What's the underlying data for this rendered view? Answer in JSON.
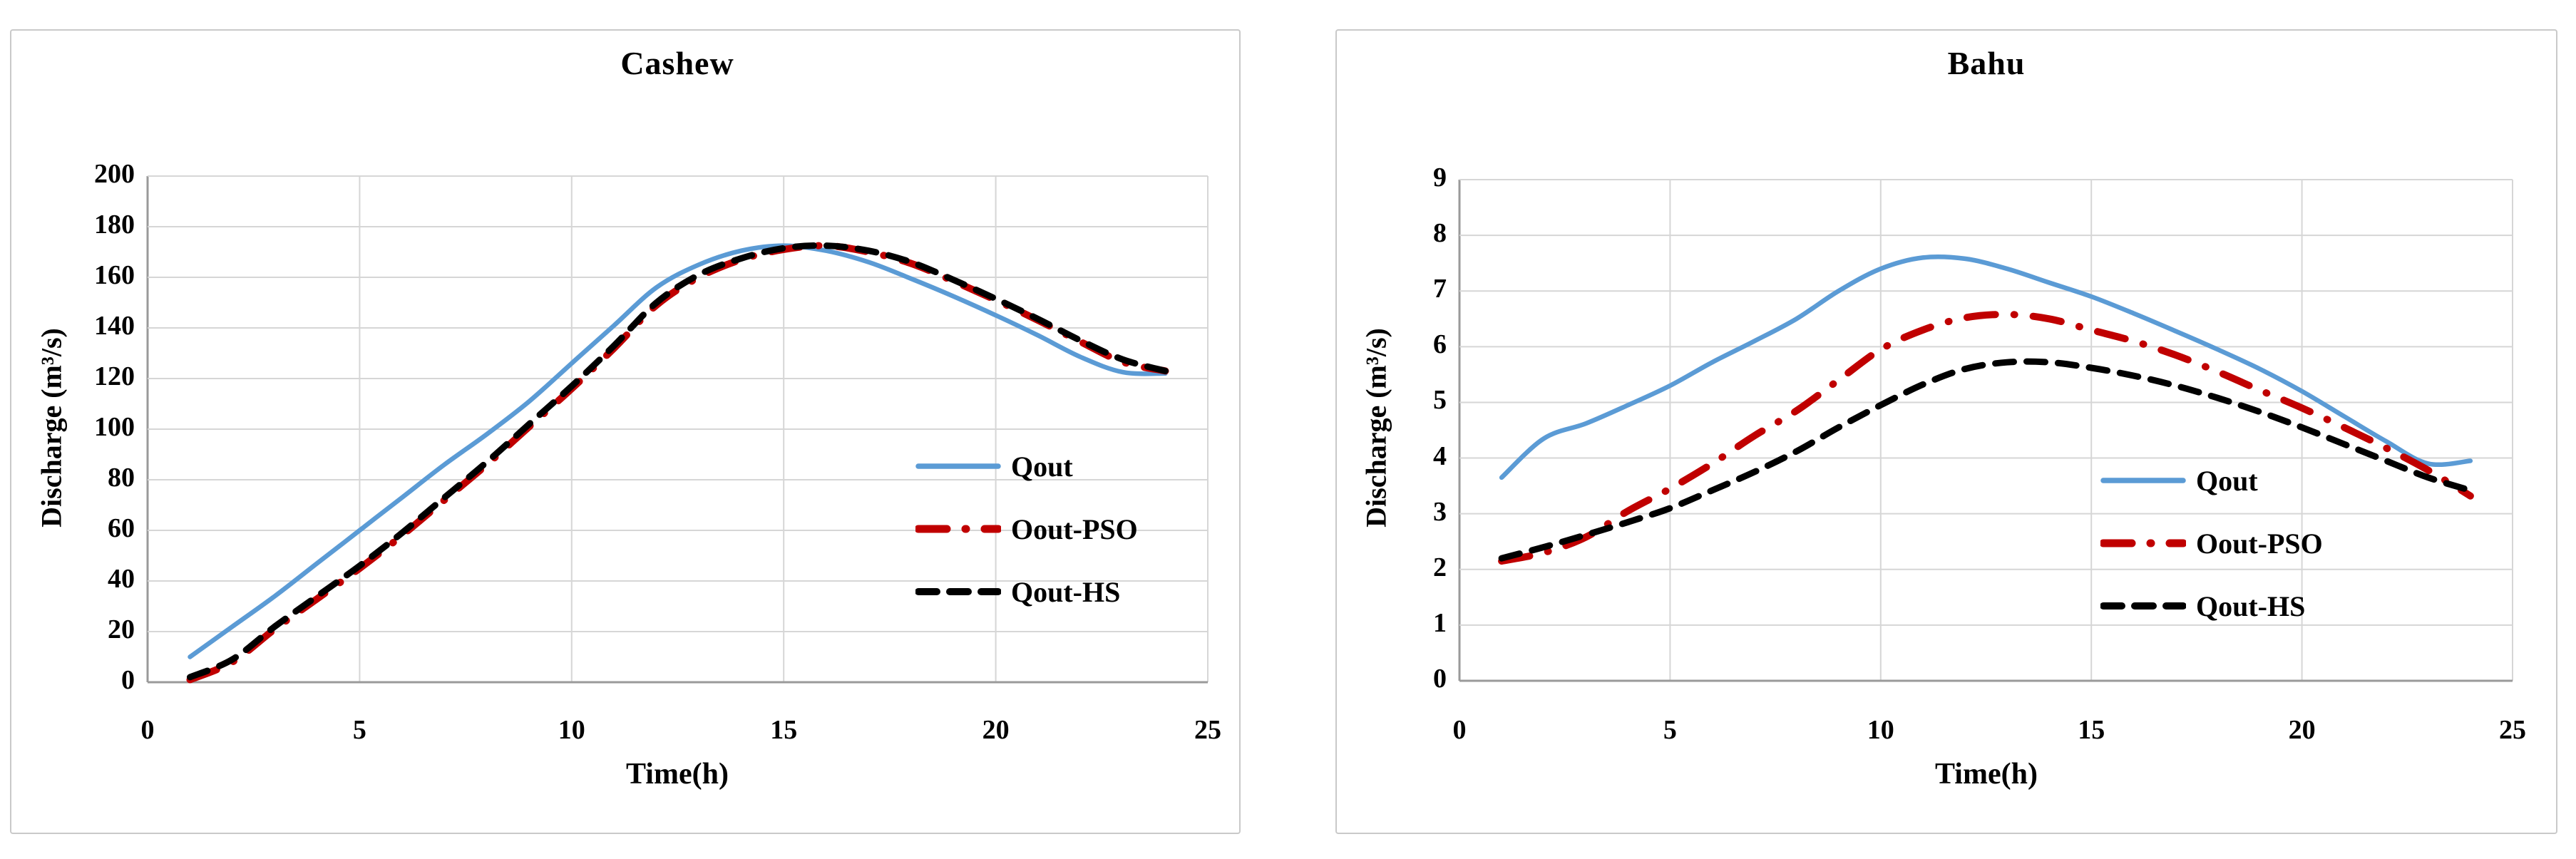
{
  "figure": {
    "background": "#ffffff",
    "panel_border_color": "#c9c9c9",
    "gridline_color": "#d6d6d6",
    "axis_line_color": "#9a9a9a"
  },
  "chart_data": [
    {
      "type": "line",
      "title": "Cashew",
      "xlabel": "Time(h)",
      "ylabel": "Discharge (m³/s)",
      "xlim": [
        0,
        25
      ],
      "ylim": [
        0,
        200
      ],
      "x_ticks": [
        0,
        5,
        10,
        15,
        20,
        25
      ],
      "y_ticks": [
        0,
        20,
        40,
        60,
        80,
        100,
        120,
        140,
        160,
        180,
        200
      ],
      "grid": true,
      "legend_position": "right-middle-inside",
      "x": [
        1,
        2,
        3,
        4,
        5,
        6,
        7,
        8,
        9,
        10,
        11,
        12,
        13,
        14,
        15,
        16,
        17,
        18,
        19,
        20,
        21,
        22,
        23,
        24
      ],
      "series": [
        {
          "name": "Qout",
          "color": "#5B9BD5",
          "line_style": "solid",
          "values": [
            10,
            22,
            34,
            47,
            60,
            73,
            86,
            98,
            111,
            126,
            141,
            156,
            165,
            170.5,
            172.5,
            170.5,
            166,
            159.5,
            152.5,
            145,
            137,
            128.5,
            122.5,
            122
          ]
        },
        {
          "name": "Oout-PSO",
          "color": "#C00000",
          "line_style": "dashdot",
          "values": [
            1,
            8,
            21,
            33,
            45,
            58,
            72,
            86,
            101,
            116,
            132,
            149,
            160,
            167,
            171,
            172.5,
            170,
            165.5,
            158.5,
            151,
            143,
            134.5,
            126.5,
            123
          ]
        },
        {
          "name": "Qout-HS",
          "color": "#000000",
          "line_style": "dashed",
          "values": [
            2,
            9,
            22,
            34,
            46,
            59,
            73,
            87,
            102,
            117,
            133,
            150,
            161,
            167.5,
            171.5,
            172.5,
            170.5,
            166,
            159,
            151.5,
            143.5,
            135,
            127.5,
            123
          ]
        }
      ]
    },
    {
      "type": "line",
      "title": "Bahu",
      "xlabel": "Time(h)",
      "ylabel": "Discharge (m³/s)",
      "xlim": [
        0,
        25
      ],
      "ylim": [
        0,
        9
      ],
      "x_ticks": [
        0,
        5,
        10,
        15,
        20,
        25
      ],
      "y_ticks": [
        0,
        1,
        2,
        3,
        4,
        5,
        6,
        7,
        8,
        9
      ],
      "grid": true,
      "legend_position": "right-middle-inside",
      "x": [
        1,
        2,
        3,
        4,
        5,
        6,
        7,
        8,
        9,
        10,
        11,
        12,
        13,
        14,
        15,
        16,
        17,
        18,
        19,
        20,
        21,
        22,
        23,
        24
      ],
      "series": [
        {
          "name": "Qout",
          "color": "#5B9BD5",
          "line_style": "solid",
          "values": [
            3.65,
            4.35,
            4.62,
            4.95,
            5.3,
            5.72,
            6.1,
            6.5,
            7.0,
            7.4,
            7.6,
            7.58,
            7.4,
            7.15,
            6.9,
            6.6,
            6.28,
            5.95,
            5.6,
            5.2,
            4.75,
            4.3,
            3.9,
            3.95
          ]
        },
        {
          "name": "Oout-PSO",
          "color": "#C00000",
          "line_style": "dashdot",
          "values": [
            2.15,
            2.3,
            2.58,
            3.05,
            3.45,
            3.9,
            4.4,
            4.85,
            5.4,
            5.95,
            6.3,
            6.52,
            6.58,
            6.5,
            6.3,
            6.1,
            5.85,
            5.55,
            5.22,
            4.9,
            4.55,
            4.18,
            3.78,
            3.32
          ]
        },
        {
          "name": "Qout-HS",
          "color": "#000000",
          "line_style": "dashed",
          "values": [
            2.2,
            2.4,
            2.62,
            2.85,
            3.1,
            3.42,
            3.75,
            4.12,
            4.55,
            4.95,
            5.32,
            5.6,
            5.72,
            5.72,
            5.62,
            5.48,
            5.3,
            5.08,
            4.83,
            4.55,
            4.25,
            3.95,
            3.65,
            3.42
          ]
        }
      ]
    }
  ]
}
